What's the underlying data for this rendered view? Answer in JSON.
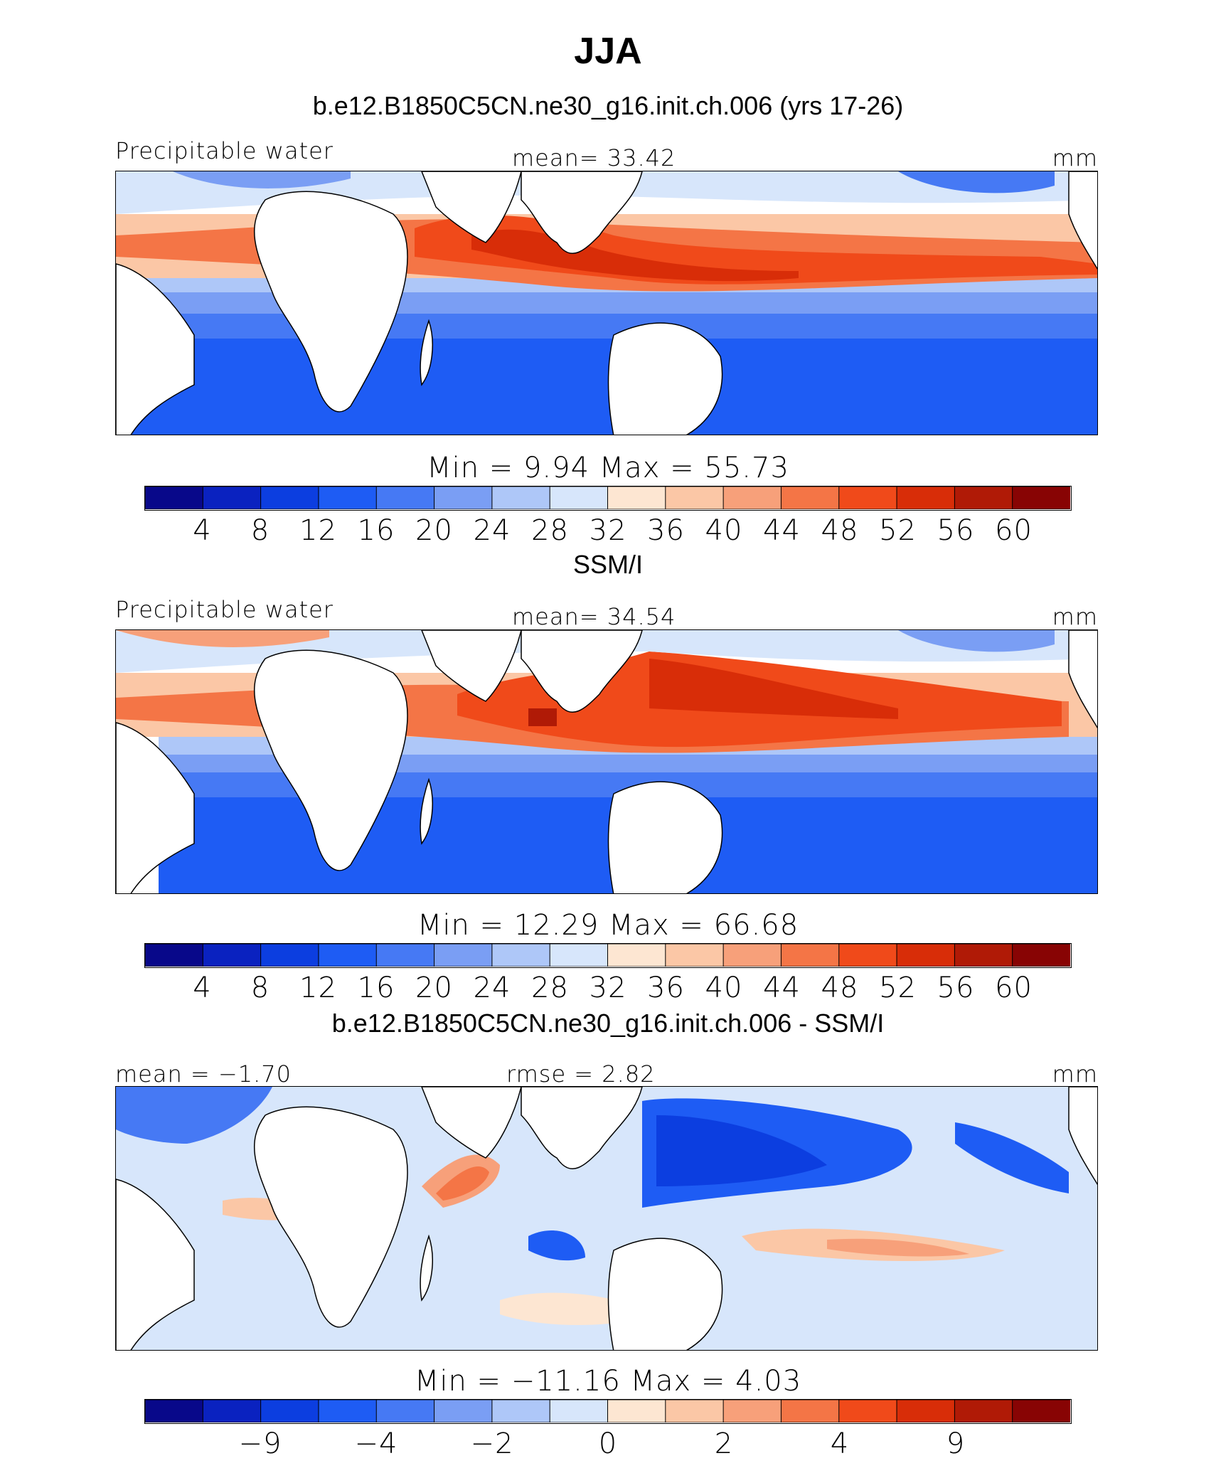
{
  "figure": {
    "title": "JJA"
  },
  "panels": [
    {
      "title": "b.e12.B1850C5CN.ne30_g16.init.ch.006 (yrs 17-26)",
      "left_label": "Precipitable water",
      "mid_label": "mean=   33.42",
      "unit_label": "mm",
      "minmax_label": "Min  =      9.94  Max  =     55.73"
    },
    {
      "title": "SSM/I",
      "left_label": "Precipitable water",
      "mid_label": "mean=   34.54",
      "unit_label": "mm",
      "minmax_label": "Min  =    12.29  Max  =     66.68"
    },
    {
      "title": "b.e12.B1850C5CN.ne30_g16.init.ch.006 - SSM/I",
      "left_label": "mean  =   −1.70",
      "mid_label": "rmse  =     2.82",
      "unit_label": "mm",
      "minmax_label": "Min  =  −11.16  Max  =     4.03"
    }
  ],
  "colorbars": {
    "palette": [
      "#08088a",
      "#0a22c0",
      "#0c3ee0",
      "#1e5cf4",
      "#4679f4",
      "#7a9ef4",
      "#aec7f8",
      "#d7e6fb",
      "#fde6d2",
      "#fbc7a6",
      "#f7a07a",
      "#f47546",
      "#f04a1a",
      "#d82d08",
      "#b01a06",
      "#880404"
    ],
    "absolute": {
      "ticks": [
        "4",
        "8",
        "12",
        "16",
        "20",
        "24",
        "28",
        "32",
        "36",
        "40",
        "44",
        "48",
        "52",
        "56",
        "60"
      ]
    },
    "difference": {
      "ticks": [
        "−9",
        "−4",
        "−2",
        "0",
        "2",
        "4",
        "9"
      ],
      "tick_boundaries": [
        2,
        4,
        6,
        8,
        10,
        12,
        14
      ]
    }
  }
}
